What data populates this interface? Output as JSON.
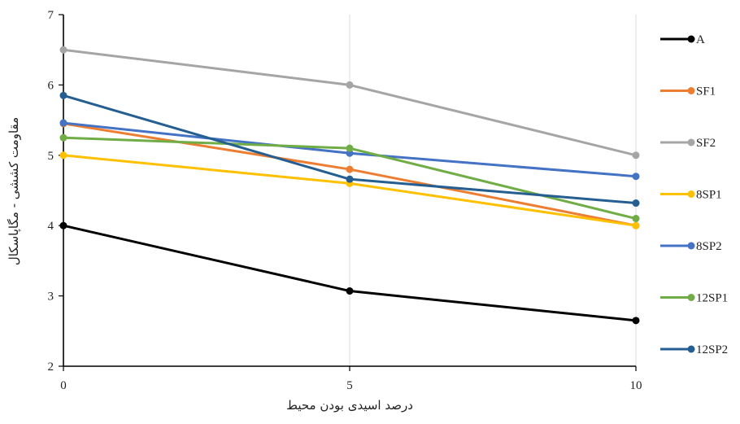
{
  "chart_data": {
    "type": "line",
    "xlabel": "درصد اسیدی بودن محیط",
    "ylabel": "مقاومت کششی - مگاپاسکال",
    "x": [
      0,
      5,
      10
    ],
    "x_ticks": [
      "0",
      "5",
      "10"
    ],
    "ylim": [
      2,
      7
    ],
    "y_ticks": [
      "2",
      "3",
      "4",
      "5",
      "6",
      "7"
    ],
    "grid": "vertical",
    "legend_position": "right",
    "series": [
      {
        "name": "A",
        "values": [
          4.0,
          3.07,
          2.65
        ],
        "color": "#000000"
      },
      {
        "name": "SF1",
        "values": [
          5.45,
          4.8,
          4.0
        ],
        "color": "#ed7d31"
      },
      {
        "name": "SF2",
        "values": [
          6.5,
          6.0,
          5.0
        ],
        "color": "#a5a5a5"
      },
      {
        "name": "8SP1",
        "values": [
          5.0,
          4.6,
          4.0
        ],
        "color": "#ffc000"
      },
      {
        "name": "8SP2",
        "values": [
          5.46,
          5.03,
          4.7
        ],
        "color": "#4472c4"
      },
      {
        "name": "12SP1",
        "values": [
          5.25,
          5.1,
          4.1
        ],
        "color": "#70ad47"
      },
      {
        "name": "12SP2",
        "values": [
          5.85,
          4.66,
          4.32
        ],
        "color": "#255e91"
      }
    ]
  }
}
